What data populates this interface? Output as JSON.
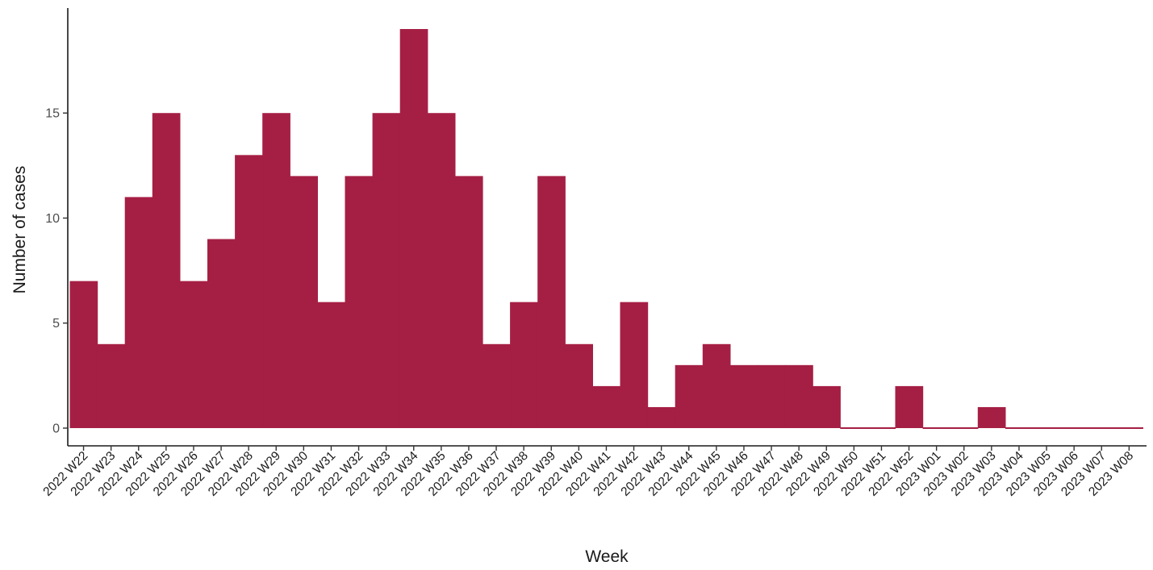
{
  "colors": {
    "bar": "#a51f44",
    "axis": "#1a1a1a",
    "tick_text": "#4d4d4d"
  },
  "chart_data": {
    "type": "bar",
    "xlabel": "Week",
    "ylabel": "Number of cases",
    "ylim": [
      0,
      19
    ],
    "yticks": [
      0,
      5,
      10,
      15
    ],
    "grid": false,
    "legend": "none",
    "categories": [
      "2022 W22",
      "2022 W23",
      "2022 W24",
      "2022 W25",
      "2022 W26",
      "2022 W27",
      "2022 W28",
      "2022 W29",
      "2022 W30",
      "2022 W31",
      "2022 W32",
      "2022 W33",
      "2022 W34",
      "2022 W35",
      "2022 W36",
      "2022 W37",
      "2022 W38",
      "2022 W39",
      "2022 W40",
      "2022 W41",
      "2022 W42",
      "2022 W43",
      "2022 W44",
      "2022 W45",
      "2022 W46",
      "2022 W47",
      "2022 W48",
      "2022 W49",
      "2022 W50",
      "2022 W51",
      "2022 W52",
      "2023 W01",
      "2023 W02",
      "2023 W03",
      "2023 W04",
      "2023 W05",
      "2023 W06",
      "2023 W07",
      "2023 W08"
    ],
    "values": [
      7,
      4,
      11,
      15,
      7,
      9,
      13,
      15,
      12,
      6,
      12,
      15,
      19,
      15,
      12,
      4,
      6,
      12,
      4,
      2,
      6,
      1,
      3,
      4,
      3,
      3,
      3,
      2,
      0,
      0,
      2,
      0,
      0,
      1,
      0,
      0,
      0,
      0,
      0
    ]
  }
}
